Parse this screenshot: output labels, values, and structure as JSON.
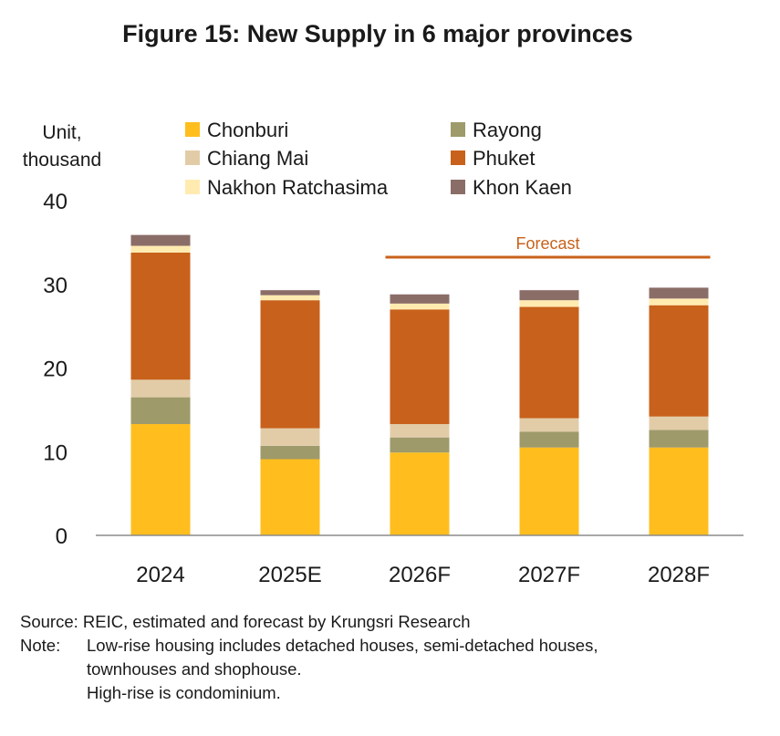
{
  "chart_data": {
    "type": "bar",
    "stacked": true,
    "title": "Figure 15: New Supply in 6 major provinces",
    "ylabel_lines": [
      "Unit,",
      "thousand"
    ],
    "xlabel": "",
    "ylim": [
      0,
      40
    ],
    "yticks": [
      0,
      10,
      20,
      30,
      40
    ],
    "categories": [
      "2024",
      "2025E",
      "2026F",
      "2027F",
      "2028F"
    ],
    "series": [
      {
        "name": "Chonburi",
        "color": "#FFBE1E",
        "values": [
          13.3,
          9.1,
          9.9,
          10.5,
          10.5
        ]
      },
      {
        "name": "Rayong",
        "color": "#9E9A6A",
        "values": [
          3.2,
          1.6,
          1.8,
          1.9,
          2.1
        ]
      },
      {
        "name": "Chiang Mai",
        "color": "#E2CCA8",
        "values": [
          2.1,
          2.1,
          1.6,
          1.6,
          1.6
        ]
      },
      {
        "name": "Phuket",
        "color": "#C8611B",
        "values": [
          15.2,
          15.3,
          13.7,
          13.3,
          13.3
        ]
      },
      {
        "name": "Nakhon Ratchasima",
        "color": "#FFEBB0",
        "values": [
          0.8,
          0.6,
          0.7,
          0.8,
          0.8
        ]
      },
      {
        "name": "Khon Kaen",
        "color": "#8B6D68",
        "values": [
          1.3,
          0.6,
          1.1,
          1.2,
          1.3
        ]
      }
    ],
    "legend_order": [
      "Chonburi",
      "Rayong",
      "Chiang Mai",
      "Phuket",
      "Nakhon Ratchasima",
      "Khon Kaen"
    ],
    "annotation": {
      "text": "Forecast",
      "color": "#C8611B",
      "spans_categories": [
        "2026F",
        "2028F"
      ]
    },
    "grid": false
  },
  "notes": {
    "source": "Source: REIC, estimated and forecast by Krungsri Research",
    "note_label": "Note:",
    "note_line1": "Low-rise housing  includes detached houses, semi-detached houses,",
    "note_line2": "townhouses and shophouse.",
    "note_line3": "High-rise is condominium."
  }
}
